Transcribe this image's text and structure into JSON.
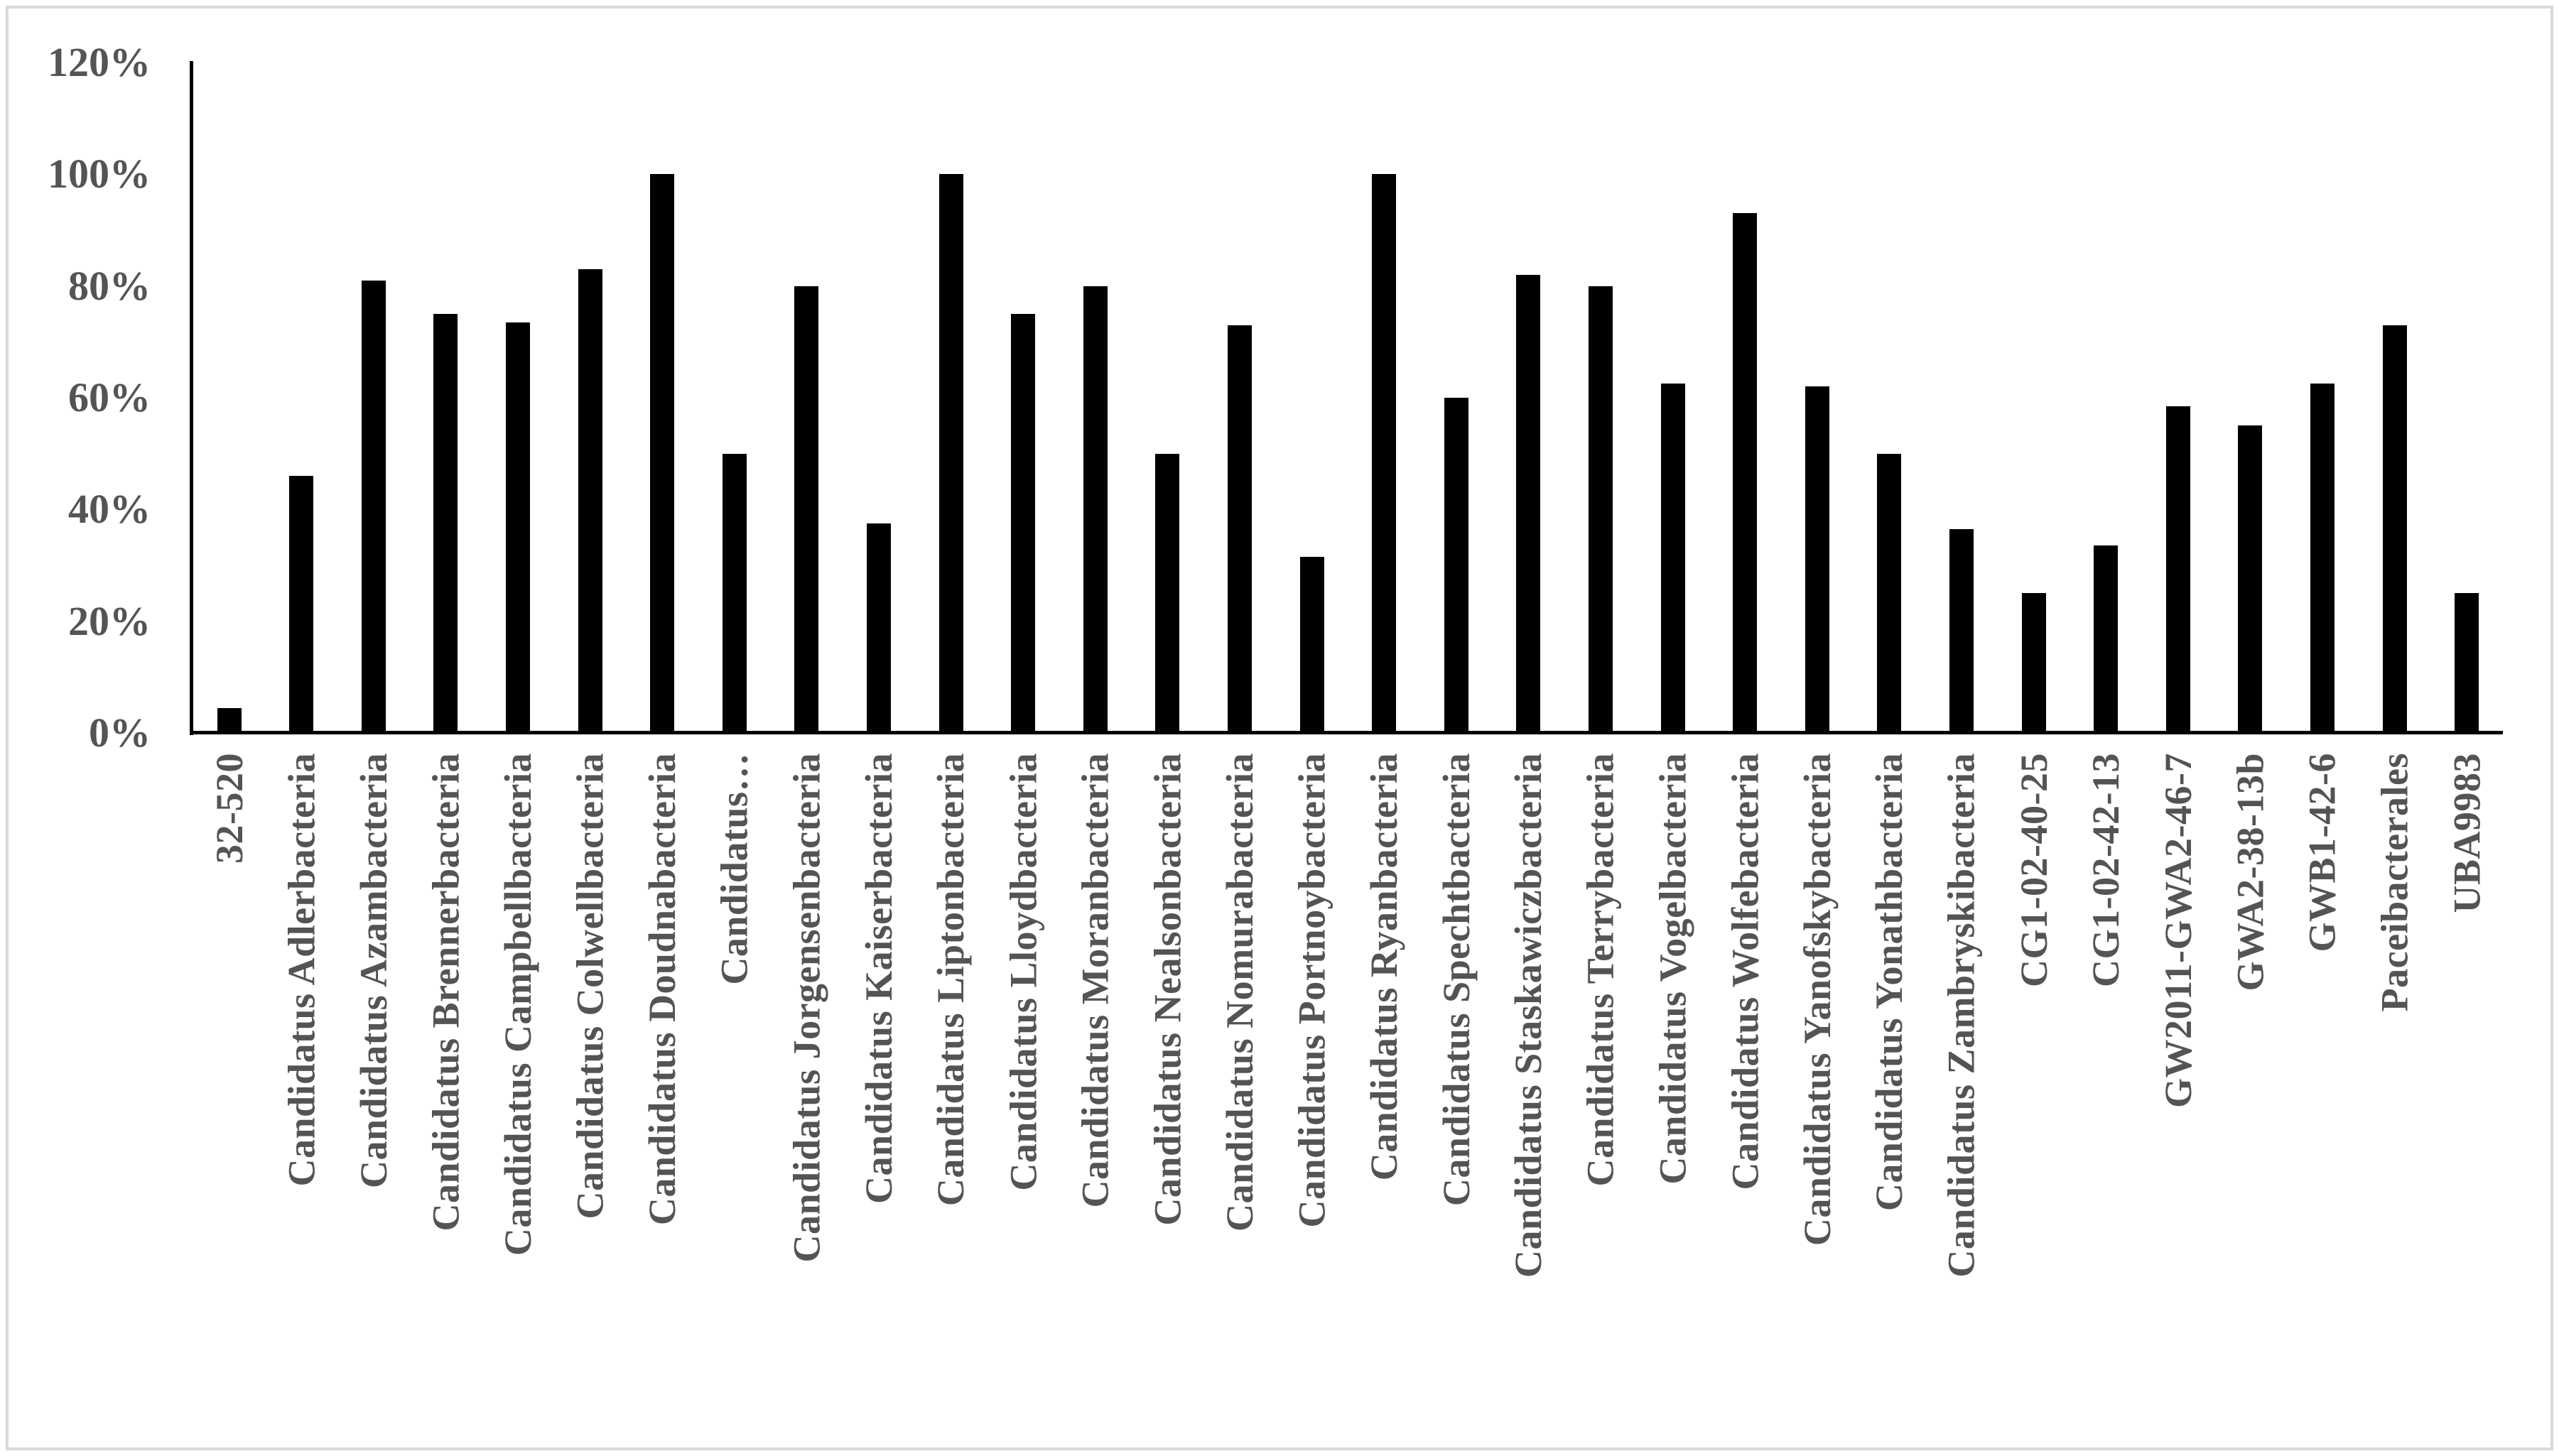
{
  "figure": {
    "background_color": "#ffffff",
    "border_color": "#d9d9d9",
    "bar_color": "#000000",
    "axis_color": "#000000",
    "tick_label_color": "#545454"
  },
  "chart_data": {
    "type": "bar",
    "title": "",
    "xlabel": "",
    "ylabel": "",
    "unit": "%",
    "ylim": [
      0,
      120
    ],
    "ytick_step": 20,
    "ytick_labels": [
      "0%",
      "20%",
      "40%",
      "60%",
      "80%",
      "100%",
      "120%"
    ],
    "grid": "off",
    "legend": "none",
    "categories": [
      "32-520",
      "Candidatus Adlerbacteria",
      "Candidatus Azambacteria",
      "Candidatus Brennerbacteria",
      "Candidatus Campbellbacteria",
      "Candidatus Colwellbacteria",
      "Candidatus Doudnabacteria",
      "Candidatus…",
      "Candidatus Jorgensenbacteria",
      "Candidatus Kaiserbacteria",
      "Candidatus Liptonbacteria",
      "Candidatus Lloydbacteria",
      "Candidatus Moranbacteria",
      "Candidatus Nealsonbacteria",
      "Candidatus Nomurabacteria",
      "Candidatus Portnoybacteria",
      "Candidatus Ryanbacteria",
      "Candidatus Spechtbacteria",
      "Candidatus Staskawiczbacteria",
      "Candidatus Terrybacteria",
      "Candidatus Vogelbacteria",
      "Candidatus Wolfebacteria",
      "Candidatus Yanofskybacteria",
      "Candidatus Yonathbacteria",
      "Candidatus Zambryskibacteria",
      "CG1-02-40-25",
      "CG1-02-42-13",
      "GW2011-GWA2-46-7",
      "GWA2-38-13b",
      "GWB1-42-6",
      "Paceibacterales",
      "UBA9983"
    ],
    "values": [
      4.5,
      46,
      81,
      75,
      73.5,
      83,
      100,
      50,
      80,
      37.5,
      100,
      75,
      80,
      50,
      73,
      31.5,
      100,
      60,
      82,
      80,
      62.5,
      93,
      62,
      50,
      36.5,
      25,
      33.5,
      58.5,
      55,
      62.5,
      73,
      25
    ]
  }
}
